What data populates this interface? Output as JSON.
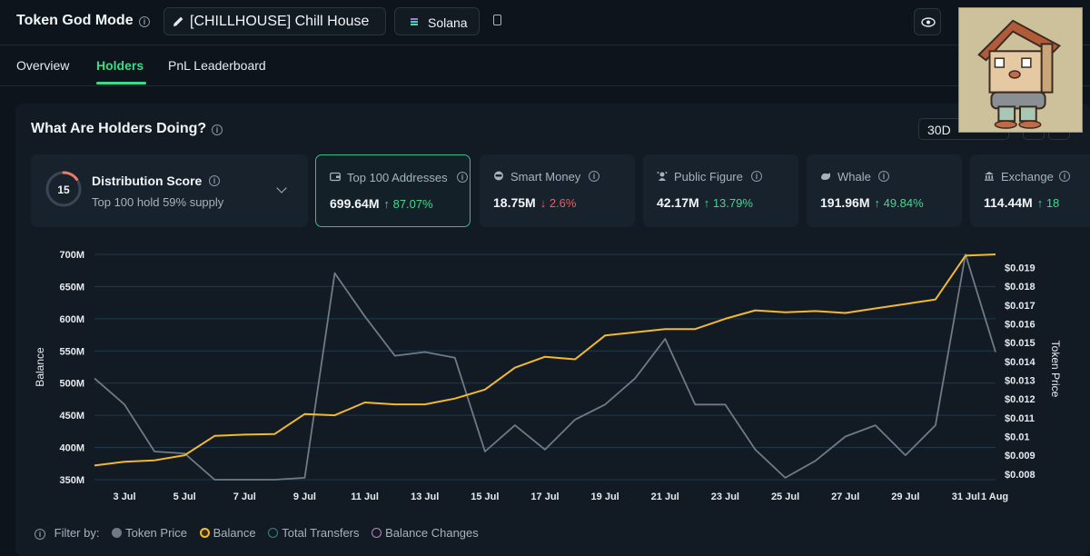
{
  "header": {
    "app_title": "Token God Mode",
    "token_label": "[CHILLHOUSE] Chill House",
    "chain_label": "Solana"
  },
  "tabs": [
    {
      "label": "Overview",
      "active": false
    },
    {
      "label": "Holders",
      "active": true
    },
    {
      "label": "PnL Leaderboard",
      "active": false
    }
  ],
  "panel": {
    "title": "What Are Holders Doing?",
    "period": "30D"
  },
  "distribution": {
    "score": "15",
    "title": "Distribution Score",
    "subtitle": "Top 100 hold 59% supply",
    "score_fraction": 0.15
  },
  "stats": [
    {
      "label": "Top 100 Addresses",
      "icon": "wallet-icon",
      "value": "699.64M",
      "change": "↑ 87.07%",
      "direction": "up",
      "selected": true
    },
    {
      "label": "Smart Money",
      "icon": "smart-money-icon",
      "value": "18.75M",
      "change": "↓ 2.6%",
      "direction": "down",
      "selected": false
    },
    {
      "label": "Public Figure",
      "icon": "public-figure-icon",
      "value": "42.17M",
      "change": "↑ 13.79%",
      "direction": "up",
      "selected": false
    },
    {
      "label": "Whale",
      "icon": "whale-icon",
      "value": "191.96M",
      "change": "↑ 49.84%",
      "direction": "up",
      "selected": false
    },
    {
      "label": "Exchange",
      "icon": "exchange-icon",
      "value": "114.44M",
      "change": "↑ 18",
      "direction": "up",
      "selected": false
    }
  ],
  "chart_data": {
    "type": "line",
    "ylabel": "Balance",
    "y2label": "Token Price",
    "ylim": [
      350,
      700
    ],
    "y2lim": [
      0.0077,
      0.0197
    ],
    "y_ticks": [
      "350M",
      "400M",
      "450M",
      "500M",
      "550M",
      "600M",
      "650M",
      "700M"
    ],
    "y2_ticks": [
      "$0.008",
      "$0.009",
      "$0.01",
      "$0.011",
      "$0.012",
      "$0.013",
      "$0.014",
      "$0.015",
      "$0.016",
      "$0.017",
      "$0.018",
      "$0.019"
    ],
    "x_ticks": [
      "3 Jul",
      "5 Jul",
      "7 Jul",
      "9 Jul",
      "11 Jul",
      "13 Jul",
      "15 Jul",
      "17 Jul",
      "19 Jul",
      "21 Jul",
      "23 Jul",
      "25 Jul",
      "27 Jul",
      "29 Jul",
      "31 Jul",
      "1 Aug"
    ],
    "x": [
      "2 Jul",
      "3 Jul",
      "4 Jul",
      "5 Jul",
      "6 Jul",
      "7 Jul",
      "8 Jul",
      "9 Jul",
      "10 Jul",
      "11 Jul",
      "12 Jul",
      "13 Jul",
      "14 Jul",
      "15 Jul",
      "16 Jul",
      "17 Jul",
      "18 Jul",
      "19 Jul",
      "20 Jul",
      "21 Jul",
      "22 Jul",
      "23 Jul",
      "24 Jul",
      "25 Jul",
      "26 Jul",
      "27 Jul",
      "28 Jul",
      "29 Jul",
      "30 Jul",
      "31 Jul",
      "1 Aug"
    ],
    "grid": true,
    "series": [
      {
        "name": "Balance",
        "axis": "left",
        "color": "#f2b92c",
        "values": [
          372,
          378,
          380,
          388,
          418,
          420,
          421,
          452,
          450,
          470,
          467,
          467,
          476,
          490,
          524,
          541,
          537,
          574,
          579,
          584,
          584,
          600,
          613,
          610,
          612,
          609,
          616,
          623,
          630,
          698,
          700
        ]
      },
      {
        "name": "Token Price",
        "axis": "right",
        "color": "#6e7a86",
        "values": [
          0.0131,
          0.0117,
          0.0092,
          0.0091,
          0.0075,
          0.0074,
          0.0068,
          0.0078,
          0.0187,
          0.0164,
          0.0143,
          0.0145,
          0.0142,
          0.0092,
          0.0106,
          0.0093,
          0.0109,
          0.0117,
          0.0131,
          0.0152,
          0.0117,
          0.0117,
          0.0093,
          0.0078,
          0.0087,
          0.01,
          0.0106,
          0.009,
          0.0106,
          0.0197,
          0.0145
        ]
      }
    ]
  },
  "legend": {
    "filter_label": "Filter by:",
    "items": [
      {
        "label": "Token Price",
        "color": "#6e7a86",
        "style": "filled"
      },
      {
        "label": "Balance",
        "color": "#f2b92c",
        "style": "ring"
      },
      {
        "label": "Total Transfers",
        "color": "#1f8f86",
        "style": "ring"
      },
      {
        "label": "Balance Changes",
        "color": "#c77fc0",
        "style": "ring"
      }
    ]
  }
}
